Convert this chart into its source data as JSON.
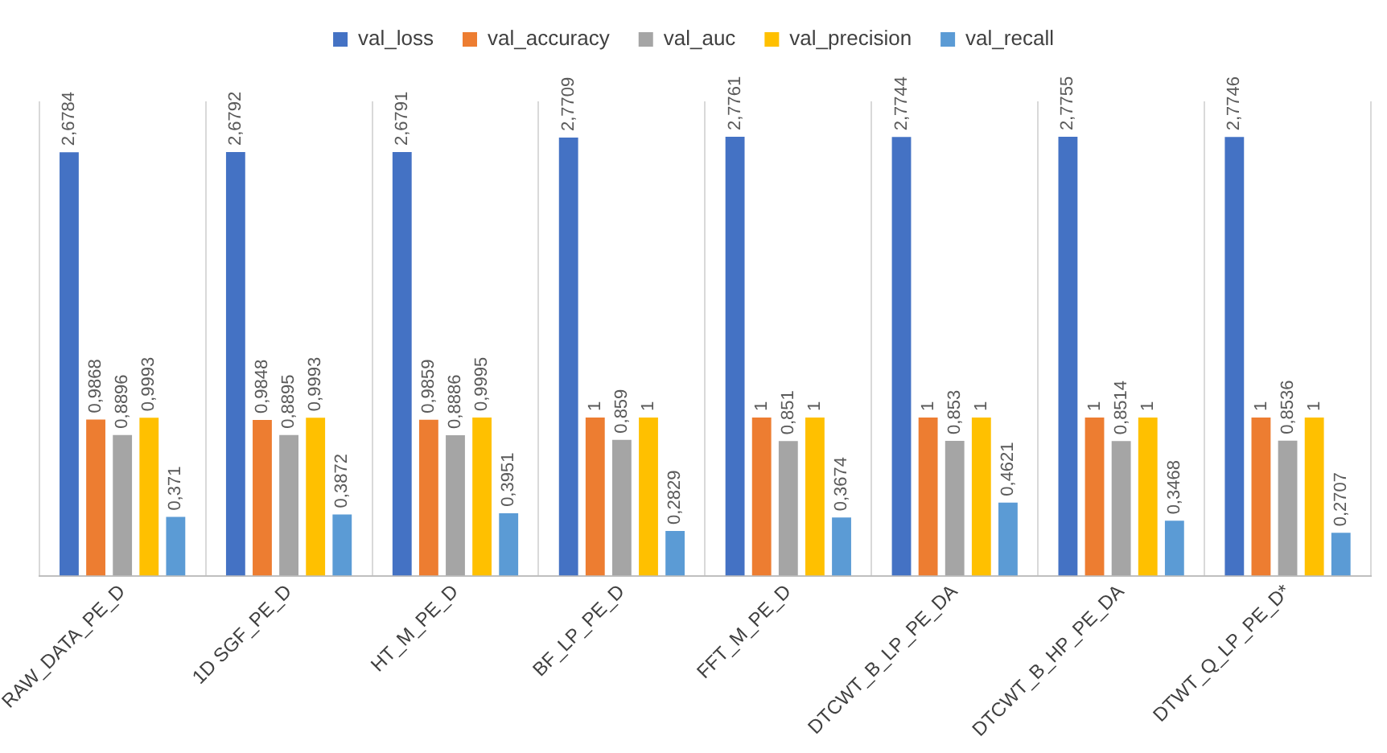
{
  "chart_data": {
    "type": "bar",
    "categories": [
      "RAW_DATA_PE_D",
      "1D SGF_PE_D",
      "HT_M_PE_D",
      "BF_LP_PE_D",
      "FFT_M_PE_D",
      "DTCWT_B_LP_PE_DA",
      "DTCWT_B_HP_PE_DA",
      "DTWT_Q_LP_PE_D*"
    ],
    "series": [
      {
        "name": "val_loss",
        "color": "#4472c4",
        "values": [
          2.6784,
          2.6792,
          2.6791,
          2.7709,
          2.7761,
          2.7744,
          2.7755,
          2.7746
        ],
        "value_labels": [
          "2,6784",
          "2,6792",
          "2,6791",
          "2,7709",
          "2,7761",
          "2,7744",
          "2,7755",
          "2,7746"
        ]
      },
      {
        "name": "val_accuracy",
        "color": "#ed7d31",
        "values": [
          0.9868,
          0.9848,
          0.9859,
          1,
          1,
          1,
          1,
          1
        ],
        "value_labels": [
          "0,9868",
          "0,9848",
          "0,9859",
          "1",
          "1",
          "1",
          "1",
          "1"
        ]
      },
      {
        "name": "val_auc",
        "color": "#a5a5a5",
        "values": [
          0.8896,
          0.8895,
          0.8886,
          0.859,
          0.851,
          0.853,
          0.8514,
          0.8536
        ],
        "value_labels": [
          "0,8896",
          "0,8895",
          "0,8886",
          "0,859",
          "0,851",
          "0,853",
          "0,8514",
          "0,8536"
        ]
      },
      {
        "name": "val_precision",
        "color": "#ffc000",
        "values": [
          0.9993,
          0.9993,
          0.9995,
          1,
          1,
          1,
          1,
          1
        ],
        "value_labels": [
          "0,9993",
          "0,9993",
          "0,9995",
          "1",
          "1",
          "1",
          "1",
          "1"
        ]
      },
      {
        "name": "val_recall",
        "color": "#5b9bd5",
        "values": [
          0.371,
          0.3872,
          0.3951,
          0.2829,
          0.3674,
          0.4621,
          0.3468,
          0.2707
        ],
        "value_labels": [
          "0,371",
          "0,3872",
          "0,3951",
          "0,2829",
          "0,3674",
          "0,4621",
          "0,3468",
          "0,2707"
        ]
      }
    ],
    "grid": "x",
    "legend": "top"
  }
}
